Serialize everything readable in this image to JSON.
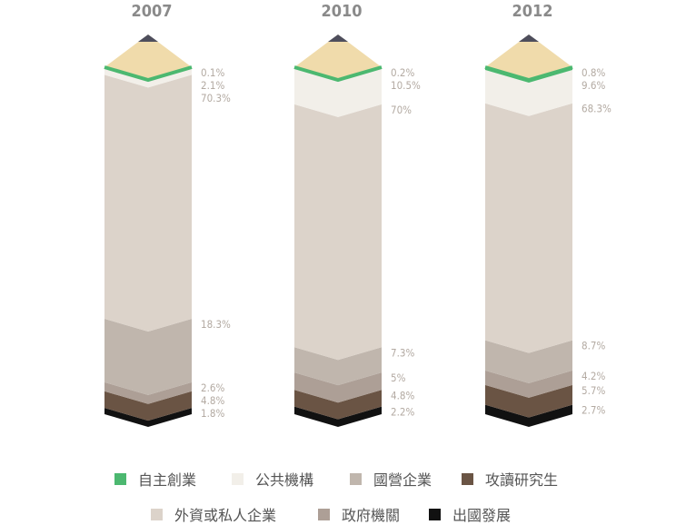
{
  "chart_data": {
    "type": "stacked-bar",
    "categories": [
      "2007",
      "2010",
      "2012"
    ],
    "series": [
      {
        "name": "出國發展",
        "color": "#111111",
        "values": [
          1.8,
          2.2,
          2.7
        ],
        "labels": [
          "1.8%",
          "2.2%",
          "2.7%"
        ]
      },
      {
        "name": "攻讀研究生",
        "color": "#6a5444",
        "values": [
          4.8,
          4.8,
          5.7
        ],
        "labels": [
          "4.8%",
          "4.8%",
          "5.7%"
        ]
      },
      {
        "name": "政府機關",
        "color": "#ad9f96",
        "values": [
          2.6,
          5,
          4.2
        ],
        "labels": [
          "2.6%",
          "5%",
          "4.2%"
        ]
      },
      {
        "name": "國營企業",
        "color": "#c0b6ad",
        "values": [
          18.3,
          7.3,
          8.7
        ],
        "labels": [
          "18.3%",
          "7.3%",
          "8.7%"
        ]
      },
      {
        "name": "外資或私人企業",
        "color": "#dcd3ca",
        "values": [
          70.3,
          70,
          68.3
        ],
        "labels": [
          "70.3%",
          "70%",
          "68.3%"
        ]
      },
      {
        "name": "公共機構",
        "color": "#f2efe9",
        "values": [
          2.1,
          10.5,
          9.6
        ],
        "labels": [
          "2.1%",
          "10.5%",
          "9.6%"
        ]
      },
      {
        "name": "自主創業",
        "color": "#4cb870",
        "values": [
          0.1,
          0.2,
          0.8
        ],
        "labels": [
          "0.1%",
          "0.2%",
          "0.8%"
        ]
      }
    ],
    "pencil_tip_color": "#f0dbab",
    "pencil_lead_color": "#4e4e5c",
    "year_label_color": "#8a8a8a",
    "value_label_color": "#b3aaa2",
    "legend_rows": [
      [
        "自主創業",
        "公共機構",
        "國營企業",
        "攻讀研究生"
      ],
      [
        "外資或私人企業",
        "政府機關",
        "出國發展"
      ]
    ]
  }
}
